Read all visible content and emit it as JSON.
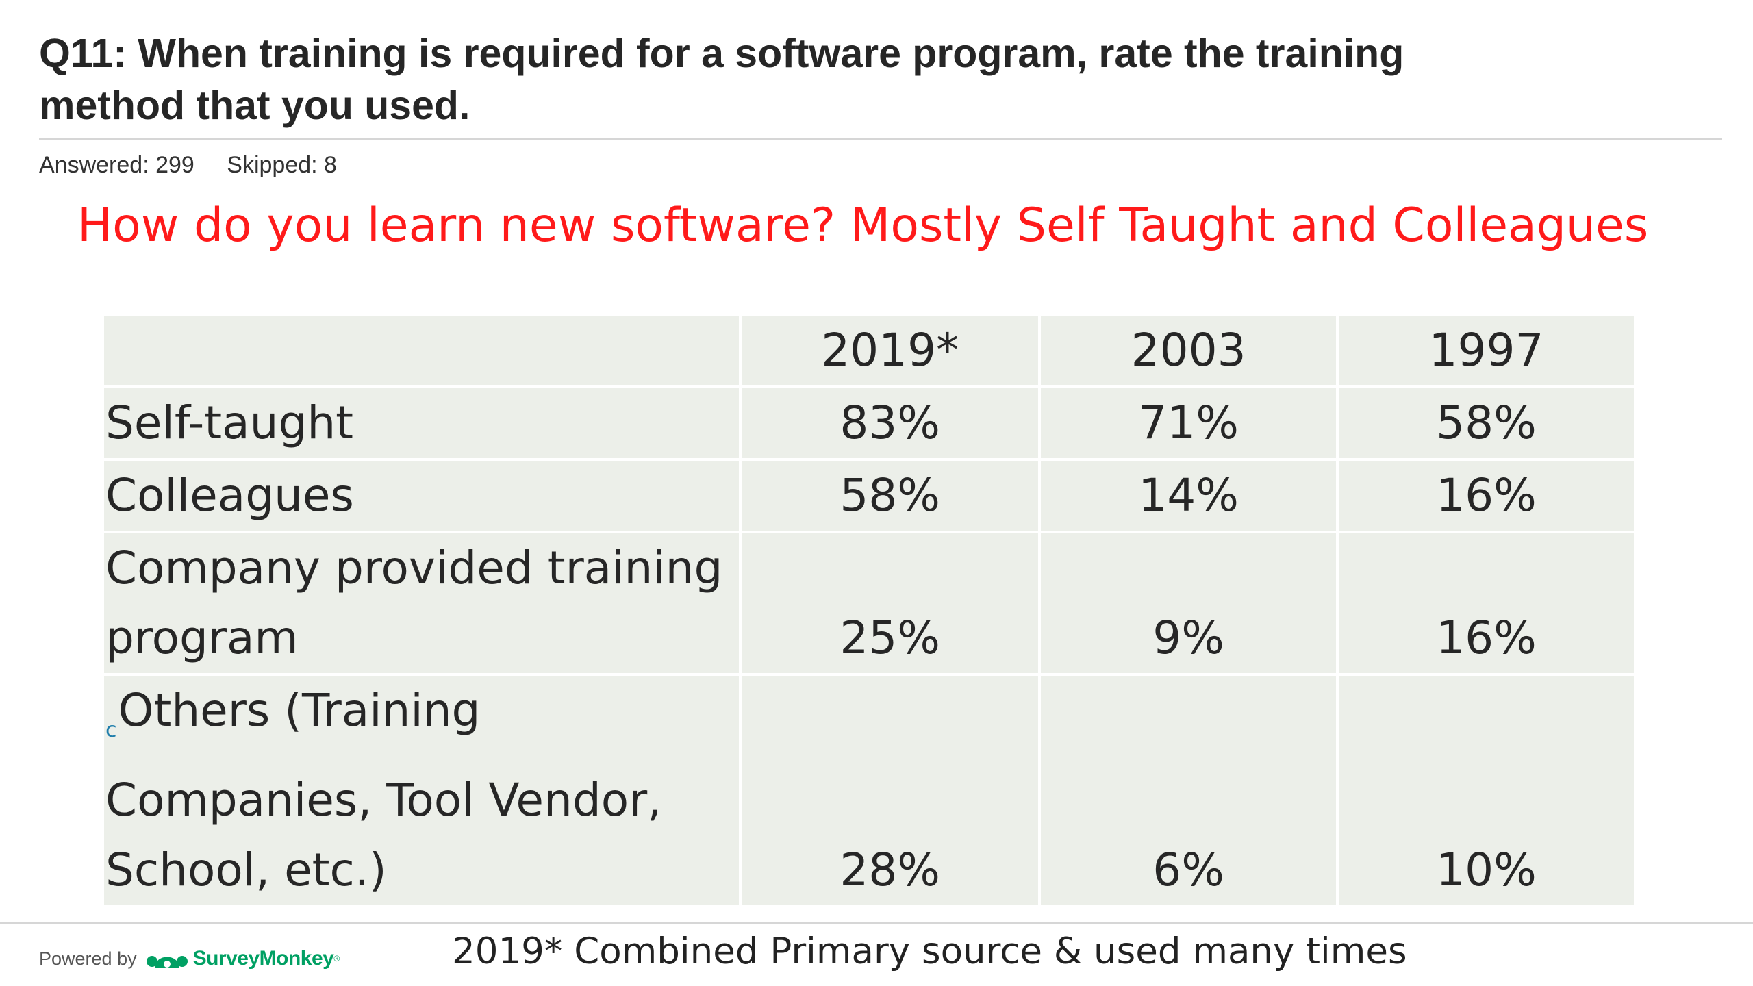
{
  "question": {
    "line1": "Q11: When training is required for a software program, rate the training",
    "line2": "method that you used."
  },
  "stats": {
    "answered": "Answered: 299",
    "skipped": "Skipped: 8"
  },
  "headline": "How do you learn new software?  Mostly Self Taught and Colleagues",
  "table": {
    "headers": [
      "",
      "2019*",
      "2003",
      "1997"
    ],
    "rows": [
      {
        "label_lines": [
          "Self-taught"
        ],
        "values": [
          "83%",
          "71%",
          "58%"
        ]
      },
      {
        "label_lines": [
          "Colleagues"
        ],
        "values": [
          "58%",
          "14%",
          "16%"
        ]
      },
      {
        "label_lines": [
          "Company provided training",
          "program"
        ],
        "values": [
          "25%",
          "9%",
          "16%"
        ]
      },
      {
        "stray_mark": "c",
        "label_lines": [
          "Others (Training",
          "Companies, Tool Vendor,",
          "School, etc.)"
        ],
        "values": [
          "28%",
          "6%",
          "10%"
        ]
      }
    ]
  },
  "footer": {
    "powered_by": "Powered by",
    "brand": "SurveyMonkey",
    "trademark": "®",
    "brand_color": "#00a063",
    "footnote": "2019* Combined Primary source & used many times"
  },
  "colors": {
    "headline": "#ff1a1a",
    "table_cell": "#ecefe9"
  }
}
